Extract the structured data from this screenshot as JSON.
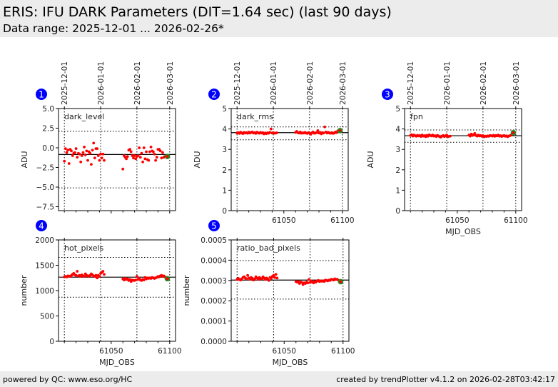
{
  "header": {
    "title": "ERIS: IFU DARK Parameters (DIT=1.64 sec) (last 90 days)",
    "subtitle": "Data range: 2025-12-01 ... 2026-02-26*"
  },
  "footer": {
    "left": "powered by QC: www.eso.org/HC",
    "right": "created by trendPlotter v4.1.2 on 2026-02-28T03:42:17"
  },
  "colors": {
    "points": "#ff0000",
    "latest": "#228b22",
    "badge": "#0000ff",
    "line": "#000000"
  },
  "chart_data": [
    {
      "id": 1,
      "type": "scatter",
      "label": "dark_level",
      "ylabel": "ADU",
      "xlabel": "",
      "xlim": [
        61005,
        61105
      ],
      "ylim": [
        -8,
        5
      ],
      "yticks": [
        "5.0",
        "2.5",
        "0.0",
        "−2.5",
        "−5.0",
        "−7.5"
      ],
      "ytick_values": [
        5.0,
        2.5,
        0.0,
        -2.5,
        -5.0,
        -7.5
      ],
      "xticks": [],
      "xtick_values": [
        61050,
        61100
      ],
      "date_ticks": [
        "2025-12-01",
        "2026-01-01",
        "2026-02-01",
        "2026-03-01"
      ],
      "date_mjd": [
        61010,
        61041,
        61072,
        61100
      ],
      "mean": -0.85,
      "band": [
        -5.1,
        2.1
      ],
      "x": [
        61010,
        61011,
        61012,
        61013,
        61014,
        61015,
        61016,
        61017,
        61018,
        61019,
        61020,
        61021,
        61022,
        61023,
        61024,
        61025,
        61026,
        61027,
        61028,
        61029,
        61030,
        61031,
        61032,
        61033,
        61034,
        61035,
        61036,
        61037,
        61038,
        61039,
        61040,
        61041,
        61042,
        61043,
        61044,
        61060,
        61061,
        61062,
        61063,
        61064,
        61065,
        61066,
        61067,
        61068,
        61069,
        61070,
        61071,
        61072,
        61073,
        61074,
        61075,
        61076,
        61077,
        61078,
        61079,
        61080,
        61081,
        61082,
        61083,
        61084,
        61085,
        61086,
        61087,
        61088,
        61089,
        61090,
        61091,
        61092,
        61093,
        61094,
        61095,
        61096,
        61097
      ],
      "y": [
        -1.7,
        -0.1,
        -0.6,
        -0.3,
        -2.0,
        -0.2,
        -0.4,
        -1.0,
        -0.7,
        -0.6,
        -0.1,
        -1.2,
        -0.7,
        -0.8,
        -1.8,
        -1.0,
        -0.6,
        0.1,
        -0.9,
        -0.4,
        -1.6,
        -0.5,
        -0.7,
        -2.1,
        -0.3,
        0.6,
        -1.3,
        -0.1,
        -0.1,
        -1.0,
        -1.6,
        -0.8,
        -1.3,
        -0.8,
        -1.6,
        -2.7,
        -1.0,
        -1.2,
        -1.4,
        -1.1,
        -0.3,
        -0.2,
        -0.5,
        -1.0,
        -1.3,
        -1.0,
        -1.4,
        -1.1,
        -1.0,
        0.0,
        -1.2,
        -0.7,
        -1.8,
        0.0,
        -1.4,
        -0.5,
        -1.5,
        -1.6,
        -0.5,
        0.1,
        -0.4,
        -0.5,
        -0.8,
        -1.6,
        -1.2,
        -0.2,
        -0.2,
        -0.4,
        -1.3,
        -0.6,
        -1.2,
        -1.1,
        -1.1
      ],
      "latest": [
        61098,
        -1.1
      ]
    },
    {
      "id": 2,
      "type": "scatter",
      "label": "dark_rms",
      "ylabel": "ADU",
      "xlabel": "",
      "xlim": [
        61005,
        61105
      ],
      "ylim": [
        0,
        5
      ],
      "yticks": [
        "5",
        "4",
        "3",
        "2",
        "1",
        "0"
      ],
      "ytick_values": [
        5,
        4,
        3,
        2,
        1,
        0
      ],
      "xticks": [
        "61050",
        "61100"
      ],
      "xtick_values": [
        61050,
        61100
      ],
      "date_ticks": [
        "2025-12-01",
        "2026-01-01",
        "2026-02-01",
        "2026-03-01"
      ],
      "date_mjd": [
        61010,
        61041,
        61072,
        61100
      ],
      "mean": 3.82,
      "band": [
        3.47,
        4.1
      ],
      "x": [
        61010,
        61011,
        61012,
        61013,
        61014,
        61015,
        61016,
        61017,
        61018,
        61019,
        61020,
        61021,
        61022,
        61023,
        61024,
        61025,
        61026,
        61027,
        61028,
        61029,
        61030,
        61031,
        61032,
        61033,
        61034,
        61035,
        61036,
        61037,
        61038,
        61039,
        61040,
        61041,
        61042,
        61043,
        61044,
        61060,
        61061,
        61062,
        61063,
        61064,
        61065,
        61066,
        61067,
        61068,
        61069,
        61070,
        61071,
        61072,
        61073,
        61074,
        61075,
        61076,
        61077,
        61078,
        61079,
        61080,
        61081,
        61082,
        61083,
        61084,
        61085,
        61086,
        61087,
        61088,
        61089,
        61090,
        61091,
        61092,
        61093,
        61094,
        61095,
        61096,
        61097
      ],
      "y": [
        3.8,
        3.82,
        3.78,
        3.84,
        3.8,
        3.77,
        3.83,
        3.8,
        3.82,
        3.79,
        3.84,
        3.8,
        3.83,
        3.85,
        3.8,
        3.82,
        3.78,
        3.84,
        3.81,
        3.79,
        3.83,
        3.8,
        3.82,
        3.76,
        3.8,
        3.77,
        3.81,
        3.79,
        3.83,
        4.0,
        3.8,
        3.82,
        3.79,
        3.8,
        3.81,
        3.83,
        3.88,
        3.82,
        3.8,
        3.85,
        3.79,
        3.81,
        3.8,
        3.83,
        3.8,
        3.78,
        3.82,
        3.79,
        3.74,
        3.81,
        3.85,
        3.79,
        3.8,
        3.82,
        3.92,
        3.8,
        3.83,
        3.76,
        3.82,
        3.8,
        4.1,
        3.85,
        3.8,
        3.83,
        3.8,
        3.79,
        3.82,
        3.78,
        3.8,
        3.85,
        3.82,
        3.9,
        3.88
      ],
      "latest": [
        61098,
        3.92
      ]
    },
    {
      "id": 3,
      "type": "scatter",
      "label": "fpn",
      "ylabel": "ADU",
      "xlabel": "MJD_OBS",
      "xlim": [
        61005,
        61105
      ],
      "ylim": [
        0,
        5
      ],
      "yticks": [
        "5",
        "4",
        "3",
        "2",
        "1",
        "0"
      ],
      "ytick_values": [
        5,
        4,
        3,
        2,
        1,
        0
      ],
      "xticks": [
        "61050",
        "61100"
      ],
      "xtick_values": [
        61050,
        61100
      ],
      "date_ticks": [
        "2025-12-01",
        "2026-01-01",
        "2026-02-01",
        "2026-03-01"
      ],
      "date_mjd": [
        61010,
        61041,
        61072,
        61100
      ],
      "mean": 3.67,
      "band": [
        3.35,
        3.95
      ],
      "x": [
        61010,
        61011,
        61012,
        61013,
        61014,
        61015,
        61016,
        61017,
        61018,
        61019,
        61020,
        61021,
        61022,
        61023,
        61024,
        61025,
        61026,
        61027,
        61028,
        61029,
        61030,
        61031,
        61032,
        61033,
        61034,
        61035,
        61036,
        61037,
        61038,
        61039,
        61040,
        61041,
        61042,
        61043,
        61044,
        61060,
        61061,
        61062,
        61063,
        61064,
        61065,
        61066,
        61067,
        61068,
        61069,
        61070,
        61071,
        61072,
        61073,
        61074,
        61075,
        61076,
        61077,
        61078,
        61079,
        61080,
        61081,
        61082,
        61083,
        61084,
        61085,
        61086,
        61087,
        61088,
        61089,
        61090,
        61091,
        61092,
        61093,
        61094,
        61095,
        61096,
        61097
      ],
      "y": [
        3.68,
        3.72,
        3.65,
        3.7,
        3.67,
        3.64,
        3.69,
        3.66,
        3.68,
        3.63,
        3.7,
        3.65,
        3.67,
        3.62,
        3.69,
        3.64,
        3.71,
        3.68,
        3.66,
        3.7,
        3.65,
        3.67,
        3.63,
        3.69,
        3.66,
        3.62,
        3.6,
        3.65,
        3.68,
        3.63,
        3.66,
        3.7,
        3.62,
        3.64,
        3.65,
        3.7,
        3.65,
        3.75,
        3.68,
        3.72,
        3.78,
        3.68,
        3.65,
        3.7,
        3.66,
        3.68,
        3.64,
        3.67,
        3.62,
        3.65,
        3.63,
        3.66,
        3.64,
        3.68,
        3.67,
        3.65,
        3.69,
        3.64,
        3.68,
        3.66,
        3.7,
        3.65,
        3.67,
        3.63,
        3.66,
        3.68,
        3.64,
        3.66,
        3.62,
        3.65,
        3.67,
        3.7,
        3.76
      ],
      "latest": [
        61098,
        3.82
      ]
    },
    {
      "id": 4,
      "type": "scatter",
      "label": "hot_pixels",
      "ylabel": "number",
      "xlabel": "MJD_OBS",
      "xlim": [
        61005,
        61105
      ],
      "ylim": [
        0,
        2000
      ],
      "yticks": [
        "2000",
        "1500",
        "1000",
        "500",
        "0"
      ],
      "ytick_values": [
        2000,
        1500,
        1000,
        500,
        0
      ],
      "xticks": [
        "61050",
        "61100"
      ],
      "xtick_values": [
        61050,
        61100
      ],
      "date_mjd": [
        61010,
        61041,
        61072,
        61100
      ],
      "mean": 1265,
      "band": [
        870,
        1655
      ],
      "x": [
        61010,
        61011,
        61012,
        61013,
        61014,
        61015,
        61016,
        61017,
        61018,
        61019,
        61020,
        61021,
        61022,
        61023,
        61024,
        61025,
        61026,
        61027,
        61028,
        61029,
        61030,
        61031,
        61032,
        61033,
        61034,
        61035,
        61036,
        61037,
        61038,
        61039,
        61040,
        61041,
        61042,
        61043,
        61044,
        61060,
        61061,
        61062,
        61063,
        61064,
        61065,
        61066,
        61067,
        61068,
        61069,
        61070,
        61071,
        61072,
        61073,
        61074,
        61075,
        61076,
        61077,
        61078,
        61079,
        61080,
        61081,
        61082,
        61083,
        61084,
        61085,
        61086,
        61087,
        61088,
        61089,
        61090,
        61091,
        61092,
        61093,
        61094,
        61095,
        61096,
        61097
      ],
      "y": [
        1270,
        1280,
        1270,
        1290,
        1285,
        1280,
        1300,
        1320,
        1340,
        1310,
        1300,
        1380,
        1290,
        1300,
        1280,
        1310,
        1290,
        1280,
        1330,
        1300,
        1290,
        1280,
        1300,
        1330,
        1310,
        1290,
        1280,
        1300,
        1250,
        1300,
        1280,
        1340,
        1360,
        1380,
        1320,
        1230,
        1210,
        1240,
        1220,
        1230,
        1200,
        1220,
        1180,
        1210,
        1200,
        1200,
        1210,
        1280,
        1220,
        1240,
        1210,
        1200,
        1220,
        1210,
        1260,
        1230,
        1250,
        1240,
        1250,
        1240,
        1260,
        1250,
        1240,
        1250,
        1260,
        1280,
        1270,
        1290,
        1300,
        1280,
        1290,
        1270,
        1240
      ],
      "latest": [
        61098,
        1235
      ]
    },
    {
      "id": 5,
      "type": "scatter",
      "label": "ratio_bad_pixels",
      "ylabel": "number",
      "xlabel": "MJD_OBS",
      "xlim": [
        61005,
        61105
      ],
      "ylim": [
        0,
        0.0005
      ],
      "yticks": [
        "0.0005",
        "0.0004",
        "0.0003",
        "0.0002",
        "0.0001",
        "0.0000"
      ],
      "ytick_values": [
        0.0005,
        0.0004,
        0.0003,
        0.0002,
        0.0001,
        0.0
      ],
      "xticks": [
        "61050",
        "61100"
      ],
      "xtick_values": [
        61050,
        61100
      ],
      "date_mjd": [
        61010,
        61041,
        61072,
        61100
      ],
      "mean": 0.000302,
      "band": [
        0.000208,
        0.000398
      ],
      "x": [
        61010,
        61011,
        61012,
        61013,
        61014,
        61015,
        61016,
        61017,
        61018,
        61019,
        61020,
        61021,
        61022,
        61023,
        61024,
        61025,
        61026,
        61027,
        61028,
        61029,
        61030,
        61031,
        61032,
        61033,
        61034,
        61035,
        61036,
        61037,
        61038,
        61039,
        61040,
        61041,
        61042,
        61043,
        61044,
        61060,
        61061,
        61062,
        61063,
        61064,
        61065,
        61066,
        61067,
        61068,
        61069,
        61070,
        61071,
        61072,
        61073,
        61074,
        61075,
        61076,
        61077,
        61078,
        61079,
        61080,
        61081,
        61082,
        61083,
        61084,
        61085,
        61086,
        61087,
        61088,
        61089,
        61090,
        61091,
        61092,
        61093,
        61094,
        61095,
        61096,
        61097
      ],
      "y": [
        0.000305,
        0.00031,
        0.000305,
        0.000302,
        0.000308,
        0.000315,
        0.000318,
        0.000312,
        0.000308,
        0.000325,
        0.000312,
        0.000305,
        0.000315,
        0.00031,
        0.000302,
        0.000308,
        0.000318,
        0.000312,
        0.000305,
        0.000315,
        0.00031,
        0.000308,
        0.000318,
        0.000312,
        0.000305,
        0.000312,
        0.000308,
        0.0003,
        0.000315,
        0.00031,
        0.00032,
        0.000325,
        0.000315,
        0.00033,
        0.000312,
        0.000295,
        0.000292,
        0.000295,
        0.000285,
        0.000292,
        0.00029,
        0.00028,
        0.000288,
        0.000285,
        0.000292,
        0.000288,
        0.000305,
        0.00029,
        0.000298,
        0.000292,
        0.000288,
        0.000295,
        0.000292,
        0.000298,
        0.0003,
        0.000295,
        0.000298,
        0.000296,
        0.000298,
        0.000295,
        0.000302,
        0.0003,
        0.000298,
        0.000302,
        0.0003,
        0.000306,
        0.000305,
        0.000302,
        0.000308,
        0.000305,
        0.000306,
        0.000302,
        0.000298
      ],
      "latest": [
        61098,
        0.000294
      ]
    }
  ]
}
